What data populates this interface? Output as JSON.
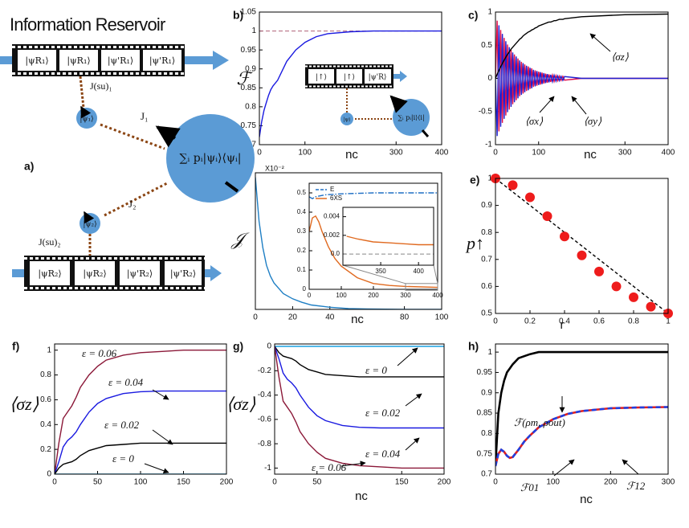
{
  "diagram": {
    "panel_label": "a)",
    "title": "Information Reservoir",
    "film_top": [
      "|ψR₁⟩",
      "|ψR₁⟩",
      "|ψ'R₁⟩",
      "|ψ'R₁⟩"
    ],
    "film_bottom": [
      "|ψR₂⟩",
      "|ψR₂⟩",
      "|ψ'R₂⟩",
      "|ψ'R₂⟩"
    ],
    "coupling_top": "J(su)₁",
    "coupling_bottom": "J(su)₂",
    "qubit_top": "|ψ₁⟩",
    "qubit_bottom": "|ψ₂⟩",
    "j1": "J₁",
    "j2": "J₂",
    "system": "∑ᵢ pᵢ|ψᵢ⟩⟨ψᵢ|"
  },
  "inset_diagram": {
    "film": [
      "|↑⟩",
      "|↑⟩",
      "|ψ'R⟩"
    ],
    "qubit": "|ψ⟩",
    "system": "∑ᵢ pᵢ|i⟩⟨i|"
  },
  "chart_data": [
    {
      "type": "line",
      "panel_label": "b)",
      "ylabel": "ℱ",
      "xlabel": "nc",
      "xlim": [
        0,
        400
      ],
      "xticks": [
        0,
        100,
        300,
        400
      ],
      "ylim": [
        0.7,
        1.05
      ],
      "yticks": [
        0.7,
        0.75,
        0.8,
        0.85,
        0.9,
        0.95,
        1,
        1.05
      ],
      "reference_line": {
        "value": 1,
        "color": "#b06078"
      },
      "series": [
        {
          "color": "#1a1ae0",
          "style": "solid",
          "x": [
            0,
            5,
            10,
            15,
            20,
            25,
            30,
            40,
            50,
            60,
            80,
            100,
            125,
            150,
            200,
            250,
            300,
            350,
            400
          ],
          "values": [
            0.72,
            0.76,
            0.79,
            0.81,
            0.83,
            0.845,
            0.855,
            0.87,
            0.895,
            0.92,
            0.95,
            0.97,
            0.985,
            0.993,
            0.998,
            1,
            1,
            1,
            1
          ]
        }
      ]
    },
    {
      "type": "line",
      "panel_label": "c)",
      "xlabel": "nc",
      "xlim": [
        0,
        400
      ],
      "xticks": [
        0,
        100,
        300,
        400
      ],
      "ylim": [
        -1,
        1
      ],
      "yticks": [
        -1,
        -0.5,
        0,
        0.5,
        1
      ],
      "x": [
        0,
        4,
        8,
        12,
        16,
        20,
        24,
        28,
        32,
        36,
        40,
        44,
        48,
        52,
        56,
        60,
        64,
        68,
        72,
        76,
        80,
        84,
        88,
        92,
        96,
        100,
        104,
        108,
        112,
        116,
        120,
        124,
        128,
        132,
        136,
        140,
        144,
        148,
        152,
        156,
        160,
        200,
        300,
        400
      ],
      "series": [
        {
          "name": "⟨σx⟩",
          "color": "#e0104a",
          "style": "solid",
          "values": [
            0,
            0.87,
            -0.8,
            0.73,
            -0.67,
            0.61,
            -0.56,
            0.51,
            -0.47,
            0.43,
            -0.39,
            0.36,
            -0.33,
            0.3,
            -0.27,
            0.25,
            -0.23,
            0.21,
            -0.19,
            0.18,
            -0.16,
            0.15,
            -0.13,
            0.12,
            -0.11,
            0.1,
            -0.095,
            0.086,
            -0.079,
            0.072,
            -0.066,
            0.06,
            -0.055,
            0.05,
            -0.046,
            0.042,
            -0.038,
            0.035,
            -0.032,
            0.03,
            -0.027,
            0,
            0,
            0
          ]
        },
        {
          "name": "⟨σy⟩",
          "color": "#2020d0",
          "style": "solid",
          "values": [
            0,
            -0.87,
            0.8,
            -0.73,
            0.67,
            -0.61,
            0.56,
            -0.51,
            0.47,
            -0.43,
            0.39,
            -0.36,
            0.33,
            -0.3,
            0.27,
            -0.25,
            0.23,
            -0.21,
            0.19,
            -0.18,
            0.16,
            -0.15,
            0.13,
            -0.12,
            0.11,
            -0.1,
            0.095,
            -0.086,
            0.079,
            -0.072,
            0.066,
            -0.06,
            0.055,
            -0.05,
            0.046,
            -0.042,
            0.038,
            -0.035,
            0.032,
            -0.03,
            0.027,
            0,
            0,
            0
          ]
        },
        {
          "name": "⟨σz⟩",
          "color": "#000000",
          "style": "solid",
          "values": [
            0,
            0.062,
            0.121,
            0.176,
            0.226,
            0.275,
            0.32,
            0.36,
            0.4,
            0.44,
            0.47,
            0.5,
            0.53,
            0.56,
            0.59,
            0.61,
            0.64,
            0.66,
            0.68,
            0.7,
            0.71,
            0.73,
            0.74,
            0.76,
            0.77,
            0.79,
            0.8,
            0.81,
            0.82,
            0.83,
            0.84,
            0.85,
            0.85,
            0.86,
            0.87,
            0.87,
            0.88,
            0.89,
            0.89,
            0.89,
            0.9,
            0.93,
            0.96,
            0.97
          ]
        }
      ]
    },
    {
      "type": "line",
      "panel_label": "d)",
      "ylabel": "𝒥",
      "xlabel": "nc",
      "y_scale_label": "X10⁻²",
      "xlim": [
        0,
        100
      ],
      "xticks": [
        0,
        20,
        40,
        80,
        100
      ],
      "ylim": [
        0,
        1.55
      ],
      "series": [
        {
          "color": "#1f7fc4",
          "style": "solid",
          "x": [
            0,
            2,
            4,
            6,
            8,
            10,
            15,
            20,
            25,
            30,
            40,
            50,
            60,
            80,
            100
          ],
          "values": [
            1.5,
            1.0,
            0.7,
            0.5,
            0.38,
            0.3,
            0.18,
            0.12,
            0.08,
            0.05,
            0.025,
            0.01,
            0.005,
            0,
            0
          ]
        }
      ]
    },
    {
      "type": "line",
      "legend": "upper left",
      "xlim": [
        0,
        400
      ],
      "xticks": [
        0,
        100,
        200,
        300,
        400
      ],
      "ylim": [
        0,
        0.55
      ],
      "yticks": [
        0,
        0.1,
        0.2,
        0.3,
        0.4,
        0.5
      ],
      "series": [
        {
          "name": "E",
          "color": "#1f6fc4",
          "style": "dashdot",
          "x": [
            0,
            10,
            20,
            50,
            100,
            200,
            300,
            400
          ],
          "values": [
            0.48,
            0.47,
            0.48,
            0.49,
            0.495,
            0.5,
            0.5,
            0.5
          ]
        },
        {
          "name": "6XS",
          "color": "#e06a20",
          "style": "solid",
          "x": [
            0,
            10,
            20,
            30,
            40,
            60,
            80,
            100,
            150,
            200,
            250,
            300,
            400
          ],
          "values": [
            0.3,
            0.37,
            0.38,
            0.35,
            0.3,
            0.22,
            0.16,
            0.12,
            0.06,
            0.03,
            0.02,
            0.015,
            0.01
          ]
        }
      ]
    },
    {
      "type": "line",
      "xlim": [
        300,
        420
      ],
      "xticks": [
        350,
        400
      ],
      "ylim": [
        -0.0012,
        0.005
      ],
      "yticks": [
        {
          "value": 0,
          "label": "0.0"
        },
        0.002,
        0.004
      ],
      "reference_line": {
        "value": 0,
        "color": "#888888"
      },
      "series": [
        {
          "color": "#e06a20",
          "style": "solid",
          "x": [
            305,
            320,
            340,
            360,
            380,
            400,
            420
          ],
          "values": [
            0.0019,
            0.0016,
            0.0013,
            0.0012,
            0.0011,
            0.001,
            0.001
          ]
        }
      ]
    },
    {
      "type": "scatter",
      "panel_label": "e)",
      "ylabel": "p↑",
      "xlabel": "r",
      "xlim": [
        0,
        1
      ],
      "xticks": [
        0,
        0.2,
        0.4,
        0.6,
        0.8,
        1
      ],
      "ylim": [
        0.5,
        1
      ],
      "yticks": [
        0.5,
        0.6,
        0.7,
        0.8,
        0.9,
        1
      ],
      "series": [
        {
          "color": "#000000",
          "style": "dashed",
          "x": [
            0,
            1
          ],
          "values": [
            1,
            0.5
          ]
        },
        {
          "color": "#ee1c1c",
          "style": "markers",
          "x": [
            0,
            0.1,
            0.2,
            0.3,
            0.4,
            0.5,
            0.6,
            0.7,
            0.8,
            0.9,
            1
          ],
          "values": [
            1,
            0.975,
            0.93,
            0.86,
            0.785,
            0.715,
            0.655,
            0.6,
            0.56,
            0.525,
            0.5
          ]
        }
      ]
    },
    {
      "type": "line",
      "panel_label": "f)",
      "ylabel": "⟨σz⟩",
      "xlim": [
        0,
        200
      ],
      "xticks": [
        0,
        50,
        100,
        150,
        200
      ],
      "ylim": [
        0,
        1.05
      ],
      "yticks": [
        0,
        0.2,
        0.4,
        0.6,
        0.8,
        1
      ],
      "x": [
        0,
        5,
        10,
        15,
        20,
        25,
        30,
        40,
        50,
        60,
        80,
        100,
        125,
        150,
        200
      ],
      "series": [
        {
          "name": "ε = 0.06",
          "color": "#8b1838",
          "style": "solid",
          "values": [
            0,
            0.25,
            0.45,
            0.5,
            0.55,
            0.62,
            0.7,
            0.8,
            0.87,
            0.92,
            0.96,
            0.98,
            0.99,
            1,
            1
          ]
        },
        {
          "name": "ε = 0.04",
          "color": "#1a1ae0",
          "style": "solid",
          "values": [
            0,
            0.1,
            0.22,
            0.27,
            0.3,
            0.34,
            0.4,
            0.5,
            0.57,
            0.61,
            0.65,
            0.665,
            0.67,
            0.67,
            0.67
          ]
        },
        {
          "name": "ε = 0.02",
          "color": "#000000",
          "style": "solid",
          "values": [
            0,
            0.05,
            0.08,
            0.09,
            0.1,
            0.12,
            0.15,
            0.19,
            0.21,
            0.23,
            0.24,
            0.25,
            0.25,
            0.25,
            0.25
          ]
        },
        {
          "name": "ε = 0",
          "color": "#1aa0e0",
          "style": "solid",
          "values": [
            0,
            0,
            0,
            0,
            0,
            0,
            0,
            0,
            0,
            0,
            0,
            0,
            0,
            0,
            0
          ]
        }
      ]
    },
    {
      "type": "line",
      "panel_label": "g)",
      "ylabel": "⟨σz⟩",
      "xlabel": "nc",
      "xlim": [
        0,
        200
      ],
      "xticks": [
        0,
        50,
        150,
        200
      ],
      "ylim": [
        -1.05,
        0.02
      ],
      "yticks": [
        -1,
        -0.8,
        -0.6,
        -0.4,
        -0.2,
        0
      ],
      "x": [
        0,
        5,
        10,
        15,
        20,
        25,
        30,
        40,
        50,
        60,
        80,
        100,
        125,
        150,
        200
      ],
      "series": [
        {
          "name": "ε = 0",
          "color": "#1aa0e0",
          "style": "solid",
          "values": [
            0,
            0,
            0,
            0,
            0,
            0,
            0,
            0,
            0,
            0,
            0,
            0,
            0,
            0,
            0
          ]
        },
        {
          "name": "ε = 0.02",
          "color": "#000000",
          "style": "solid",
          "values": [
            0,
            -0.05,
            -0.08,
            -0.09,
            -0.1,
            -0.12,
            -0.15,
            -0.19,
            -0.21,
            -0.23,
            -0.24,
            -0.25,
            -0.25,
            -0.25,
            -0.25
          ]
        },
        {
          "name": "ε = 0.04",
          "color": "#1a1ae0",
          "style": "solid",
          "values": [
            0,
            -0.1,
            -0.22,
            -0.27,
            -0.3,
            -0.34,
            -0.4,
            -0.5,
            -0.57,
            -0.61,
            -0.65,
            -0.665,
            -0.67,
            -0.67,
            -0.67
          ]
        },
        {
          "name": "ε = 0.06",
          "color": "#8b1838",
          "style": "solid",
          "values": [
            0,
            -0.25,
            -0.45,
            -0.5,
            -0.55,
            -0.62,
            -0.7,
            -0.8,
            -0.87,
            -0.92,
            -0.96,
            -0.98,
            -0.99,
            -1,
            -1
          ]
        }
      ]
    },
    {
      "type": "line",
      "panel_label": "h)",
      "xlabel": "nc",
      "xlim": [
        0,
        300
      ],
      "xticks": [
        0,
        100,
        200,
        300
      ],
      "ylim": [
        0.7,
        1.02
      ],
      "yticks": [
        0.7,
        0.75,
        0.8,
        0.85,
        0.9,
        0.95,
        1
      ],
      "x": [
        0,
        5,
        10,
        15,
        20,
        25,
        30,
        40,
        50,
        60,
        75,
        100,
        125,
        150,
        200,
        250,
        300
      ],
      "series": [
        {
          "name": "ℱ(ρm, ρout)",
          "color": "#000000",
          "style": "thick",
          "values": [
            0.72,
            0.85,
            0.9,
            0.93,
            0.95,
            0.96,
            0.97,
            0.985,
            0.99,
            0.995,
            1,
            1,
            1,
            1,
            1,
            1,
            1
          ]
        },
        {
          "name": "ℱ01",
          "color": "#e02020",
          "style": "thick",
          "values": [
            0.72,
            0.75,
            0.76,
            0.755,
            0.745,
            0.74,
            0.742,
            0.76,
            0.78,
            0.795,
            0.815,
            0.835,
            0.848,
            0.855,
            0.862,
            0.864,
            0.865
          ]
        },
        {
          "name": "ℱ12",
          "color": "#2040e0",
          "style": "thickdash",
          "values": [
            0.72,
            0.75,
            0.76,
            0.755,
            0.745,
            0.74,
            0.742,
            0.76,
            0.78,
            0.795,
            0.815,
            0.835,
            0.848,
            0.855,
            0.862,
            0.864,
            0.865
          ]
        }
      ]
    }
  ]
}
